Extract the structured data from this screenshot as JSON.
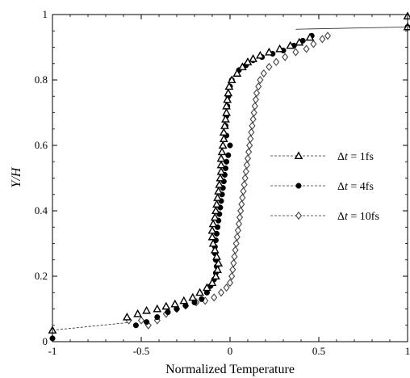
{
  "chart_data": {
    "type": "scatter",
    "xlabel": "Normalized Temperature",
    "ylabel": "Y/H",
    "xlim": [
      -1,
      1
    ],
    "ylim": [
      0,
      1
    ],
    "xticks": [
      {
        "value": -1,
        "label": "-1"
      },
      {
        "value": -0.5,
        "label": "-0.5"
      },
      {
        "value": 0,
        "label": "0"
      },
      {
        "value": 0.5,
        "label": "0.5"
      },
      {
        "value": 1,
        "label": "1"
      }
    ],
    "yticks": [
      {
        "value": 0,
        "label": "0"
      },
      {
        "value": 0.2,
        "label": "0.2"
      },
      {
        "value": 0.4,
        "label": "0.4"
      },
      {
        "value": 0.6,
        "label": "0.6"
      },
      {
        "value": 0.8,
        "label": "0.8"
      },
      {
        "value": 1,
        "label": "1"
      }
    ],
    "grid": false,
    "legend_position": "right",
    "boundary_lines": [
      {
        "points": [
          [
            -1,
            0.035
          ],
          [
            -0.58,
            0.058
          ]
        ]
      },
      {
        "points": [
          [
            0.37,
            0.955
          ],
          [
            1,
            0.962
          ]
        ]
      }
    ],
    "series": [
      {
        "name": "Δt = 1fs",
        "marker": "open-triangle",
        "points": [
          [
            -1,
            0.035
          ],
          [
            -0.58,
            0.075
          ],
          [
            -0.52,
            0.085
          ],
          [
            -0.47,
            0.095
          ],
          [
            -0.41,
            0.1
          ],
          [
            -0.36,
            0.108
          ],
          [
            -0.31,
            0.115
          ],
          [
            -0.26,
            0.125
          ],
          [
            -0.21,
            0.135
          ],
          [
            -0.17,
            0.15
          ],
          [
            -0.13,
            0.165
          ],
          [
            -0.1,
            0.18
          ],
          [
            -0.08,
            0.2
          ],
          [
            -0.07,
            0.22
          ],
          [
            -0.065,
            0.24
          ],
          [
            -0.075,
            0.26
          ],
          [
            -0.085,
            0.28
          ],
          [
            -0.095,
            0.3
          ],
          [
            -0.1,
            0.32
          ],
          [
            -0.1,
            0.34
          ],
          [
            -0.095,
            0.36
          ],
          [
            -0.085,
            0.38
          ],
          [
            -0.08,
            0.4
          ],
          [
            -0.075,
            0.42
          ],
          [
            -0.07,
            0.44
          ],
          [
            -0.065,
            0.46
          ],
          [
            -0.06,
            0.48
          ],
          [
            -0.055,
            0.5
          ],
          [
            -0.05,
            0.52
          ],
          [
            -0.05,
            0.54
          ],
          [
            -0.05,
            0.56
          ],
          [
            -0.045,
            0.58
          ],
          [
            -0.04,
            0.6
          ],
          [
            -0.035,
            0.62
          ],
          [
            -0.035,
            0.64
          ],
          [
            -0.03,
            0.66
          ],
          [
            -0.025,
            0.68
          ],
          [
            -0.02,
            0.7
          ],
          [
            -0.02,
            0.72
          ],
          [
            -0.015,
            0.74
          ],
          [
            -0.01,
            0.76
          ],
          [
            -0.005,
            0.78
          ],
          [
            0.01,
            0.8
          ],
          [
            0.04,
            0.82
          ],
          [
            0.07,
            0.84
          ],
          [
            0.1,
            0.855
          ],
          [
            0.13,
            0.865
          ],
          [
            0.17,
            0.875
          ],
          [
            0.22,
            0.885
          ],
          [
            0.28,
            0.895
          ],
          [
            0.34,
            0.905
          ],
          [
            0.39,
            0.915
          ],
          [
            0.45,
            0.93
          ],
          [
            1,
            0.962
          ],
          [
            1,
            0.995
          ]
        ]
      },
      {
        "name": "Δt = 4fs",
        "marker": "filled-circle",
        "points": [
          [
            -1,
            0.01
          ],
          [
            -0.53,
            0.05
          ],
          [
            -0.47,
            0.06
          ],
          [
            -0.41,
            0.075
          ],
          [
            -0.35,
            0.09
          ],
          [
            -0.3,
            0.1
          ],
          [
            -0.25,
            0.11
          ],
          [
            -0.2,
            0.12
          ],
          [
            -0.16,
            0.13
          ],
          [
            -0.13,
            0.15
          ],
          [
            -0.11,
            0.17
          ],
          [
            -0.09,
            0.19
          ],
          [
            -0.08,
            0.21
          ],
          [
            -0.075,
            0.23
          ],
          [
            -0.08,
            0.25
          ],
          [
            -0.085,
            0.27
          ],
          [
            -0.085,
            0.29
          ],
          [
            -0.08,
            0.31
          ],
          [
            -0.075,
            0.33
          ],
          [
            -0.07,
            0.35
          ],
          [
            -0.065,
            0.37
          ],
          [
            -0.06,
            0.39
          ],
          [
            -0.055,
            0.41
          ],
          [
            -0.05,
            0.43
          ],
          [
            -0.045,
            0.45
          ],
          [
            -0.04,
            0.47
          ],
          [
            -0.035,
            0.49
          ],
          [
            -0.03,
            0.51
          ],
          [
            -0.025,
            0.53
          ],
          [
            -0.02,
            0.55
          ],
          [
            -0.01,
            0.57
          ],
          [
            0.0,
            0.6
          ],
          [
            -0.02,
            0.63
          ],
          [
            -0.025,
            0.66
          ],
          [
            -0.02,
            0.69
          ],
          [
            -0.015,
            0.72
          ],
          [
            -0.01,
            0.75
          ],
          [
            0.0,
            0.78
          ],
          [
            0.01,
            0.8
          ],
          [
            0.05,
            0.83
          ],
          [
            0.09,
            0.845
          ],
          [
            0.13,
            0.86
          ],
          [
            0.18,
            0.87
          ],
          [
            0.24,
            0.88
          ],
          [
            0.3,
            0.89
          ],
          [
            0.36,
            0.905
          ],
          [
            0.41,
            0.92
          ],
          [
            0.46,
            0.935
          ],
          [
            1,
            0.962
          ]
        ]
      },
      {
        "name": "Δt = 10fs",
        "marker": "open-diamond",
        "points": [
          [
            -0.57,
            0.065
          ],
          [
            -0.5,
            0.065
          ],
          [
            -0.46,
            0.05
          ],
          [
            -0.41,
            0.065
          ],
          [
            -0.36,
            0.085
          ],
          [
            -0.3,
            0.1
          ],
          [
            -0.25,
            0.11
          ],
          [
            -0.19,
            0.12
          ],
          [
            -0.14,
            0.125
          ],
          [
            -0.09,
            0.135
          ],
          [
            -0.05,
            0.15
          ],
          [
            -0.02,
            0.165
          ],
          [
            0.0,
            0.18
          ],
          [
            0.01,
            0.2
          ],
          [
            0.015,
            0.22
          ],
          [
            0.02,
            0.24
          ],
          [
            0.025,
            0.26
          ],
          [
            0.03,
            0.28
          ],
          [
            0.035,
            0.3
          ],
          [
            0.04,
            0.32
          ],
          [
            0.045,
            0.34
          ],
          [
            0.05,
            0.36
          ],
          [
            0.055,
            0.38
          ],
          [
            0.06,
            0.4
          ],
          [
            0.065,
            0.42
          ],
          [
            0.07,
            0.44
          ],
          [
            0.075,
            0.46
          ],
          [
            0.08,
            0.48
          ],
          [
            0.085,
            0.5
          ],
          [
            0.09,
            0.52
          ],
          [
            0.095,
            0.54
          ],
          [
            0.1,
            0.56
          ],
          [
            0.105,
            0.58
          ],
          [
            0.11,
            0.6
          ],
          [
            0.115,
            0.62
          ],
          [
            0.12,
            0.64
          ],
          [
            0.125,
            0.66
          ],
          [
            0.13,
            0.68
          ],
          [
            0.135,
            0.7
          ],
          [
            0.14,
            0.72
          ],
          [
            0.145,
            0.74
          ],
          [
            0.15,
            0.76
          ],
          [
            0.16,
            0.78
          ],
          [
            0.17,
            0.8
          ],
          [
            0.19,
            0.82
          ],
          [
            0.22,
            0.84
          ],
          [
            0.26,
            0.855
          ],
          [
            0.31,
            0.87
          ],
          [
            0.37,
            0.885
          ],
          [
            0.43,
            0.895
          ],
          [
            0.47,
            0.91
          ],
          [
            0.52,
            0.925
          ],
          [
            0.55,
            0.935
          ]
        ]
      }
    ],
    "legend": [
      {
        "label_prefix": "Δ",
        "label_var": "t",
        "label_suffix": " = 1fs",
        "marker": "open-triangle"
      },
      {
        "label_prefix": "Δ",
        "label_var": "t",
        "label_suffix": " = 4fs",
        "marker": "filled-circle"
      },
      {
        "label_prefix": "Δ",
        "label_var": "t",
        "label_suffix": " = 10fs",
        "marker": "open-diamond"
      }
    ]
  }
}
